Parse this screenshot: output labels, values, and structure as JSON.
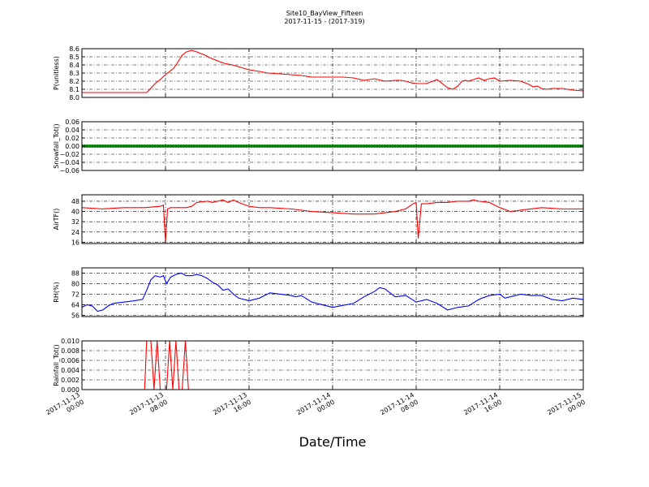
{
  "figure": {
    "title": "Site10_BayView_Fifteen",
    "subtitle": "2017-11-15 - (2017-319)",
    "xlabel": "Date/Time",
    "x_ticks": [
      {
        "line1": "2017-11-13",
        "line2": "00:00"
      },
      {
        "line1": "2017-11-13",
        "line2": "08:00"
      },
      {
        "line1": "2017-11-13",
        "line2": "16:00"
      },
      {
        "line1": "2017-11-14",
        "line2": "00:00"
      },
      {
        "line1": "2017-11-14",
        "line2": "08:00"
      },
      {
        "line1": "2017-11-14",
        "line2": "16:00"
      },
      {
        "line1": "2017-11-15",
        "line2": "00:00"
      }
    ]
  },
  "chart_data": [
    {
      "type": "line",
      "ylabel": "P(unitless)",
      "ylim": [
        8.0,
        8.6
      ],
      "yticks": [
        "8.0",
        "8.1",
        "8.2",
        "8.3",
        "8.4",
        "8.5",
        "8.6"
      ],
      "grid": true,
      "color": "#ff0000",
      "xunit": "hours since 2017-11-13 00:00",
      "x": [
        0,
        6.2,
        6.5,
        7.0,
        7.5,
        8.0,
        8.3,
        8.8,
        9.2,
        9.6,
        10.0,
        10.5,
        11.0,
        11.8,
        12.2,
        13.0,
        13.6,
        14.4,
        15.2,
        16.0,
        17.0,
        17.8,
        19.0,
        20.0,
        21.0,
        22.0,
        23.0,
        24.0,
        25.0,
        26.0,
        27.0,
        28.0,
        29.0,
        30.0,
        30.5,
        31.0,
        31.5,
        32.0,
        33.0,
        34.0,
        35.0,
        35.5,
        36.0,
        36.4,
        36.7,
        37.0,
        37.5,
        38.0,
        38.5,
        39.0,
        39.5,
        40.0,
        41.0,
        42.0,
        42.4,
        42.8,
        43.2,
        43.6,
        44.0,
        44.5,
        45.0,
        46.0,
        47.0,
        48.0
      ],
      "y": [
        8.06,
        8.06,
        8.1,
        8.17,
        8.22,
        8.28,
        8.31,
        8.36,
        8.44,
        8.52,
        8.56,
        8.58,
        8.56,
        8.52,
        8.49,
        8.45,
        8.42,
        8.4,
        8.37,
        8.34,
        8.32,
        8.3,
        8.29,
        8.28,
        8.27,
        8.25,
        8.25,
        8.25,
        8.25,
        8.24,
        8.21,
        8.23,
        8.2,
        8.21,
        8.21,
        8.2,
        8.18,
        8.17,
        8.17,
        8.22,
        8.12,
        8.1,
        8.14,
        8.2,
        8.21,
        8.2,
        8.22,
        8.24,
        8.21,
        8.23,
        8.24,
        8.2,
        8.21,
        8.2,
        8.18,
        8.16,
        8.13,
        8.14,
        8.11,
        8.1,
        8.11,
        8.11,
        8.09,
        8.08
      ]
    },
    {
      "type": "line",
      "ylabel": "Snowfall_Tot()",
      "ylim": [
        -0.06,
        0.06
      ],
      "yticks": [
        "−0.06",
        "−0.04",
        "−0.02",
        "0.00",
        "0.02",
        "0.04",
        "0.06"
      ],
      "grid": true,
      "color": "#008000",
      "marker": "dot",
      "xunit": "hours since 2017-11-13 00:00",
      "x": [
        0,
        48
      ],
      "y": [
        0.0,
        0.0
      ]
    },
    {
      "type": "line",
      "ylabel": "AirTF()",
      "ylim": [
        15,
        53
      ],
      "yticks": [
        "16",
        "24",
        "32",
        "40",
        "48"
      ],
      "grid": true,
      "color": "#ff0000",
      "xunit": "hours since 2017-11-13 00:00",
      "x": [
        0,
        2,
        4,
        6,
        7.5,
        7.8,
        8.0,
        8.2,
        8.5,
        9.0,
        10.0,
        10.5,
        11.0,
        12.0,
        12.5,
        13.0,
        13.5,
        14.0,
        14.5,
        15.0,
        16.0,
        17.0,
        18.0,
        20.0,
        22.0,
        24.0,
        26.0,
        28.0,
        30.0,
        31.0,
        31.7,
        32.0,
        32.2,
        32.5,
        33.0,
        34.0,
        35.0,
        36.0,
        37.0,
        37.5,
        38.0,
        39.0,
        40.0,
        41.0,
        42.0,
        44.0,
        46.0,
        48.0
      ],
      "y": [
        43,
        42,
        43,
        43,
        44,
        45,
        16,
        42,
        43,
        43,
        43,
        44,
        47,
        48,
        47,
        48,
        49,
        47,
        49,
        47,
        44,
        43,
        43,
        42,
        40,
        39,
        38,
        38,
        40,
        42,
        46,
        47,
        19,
        46,
        46,
        47,
        47,
        48,
        48,
        49,
        48,
        47,
        43,
        40,
        41,
        43,
        42,
        42
      ]
    },
    {
      "type": "line",
      "ylabel": "RH(%)",
      "ylim": [
        55,
        92
      ],
      "yticks": [
        "56",
        "64",
        "72",
        "80",
        "88"
      ],
      "grid": true,
      "color": "#0000ff",
      "xunit": "hours since 2017-11-13 00:00",
      "x": [
        0,
        0.5,
        1.0,
        1.5,
        2.0,
        2.5,
        3.0,
        4.0,
        5.0,
        5.8,
        6.2,
        6.6,
        7.0,
        7.5,
        7.8,
        8.1,
        8.5,
        9.0,
        9.5,
        10.0,
        10.5,
        11.0,
        11.5,
        12.0,
        12.5,
        13.0,
        13.5,
        14.0,
        14.5,
        15.0,
        16.0,
        17.0,
        17.5,
        18.0,
        19.0,
        20.0,
        20.5,
        21.0,
        22.0,
        23.0,
        24.0,
        26.0,
        27.0,
        28.0,
        28.5,
        29.0,
        29.5,
        30.0,
        31.0,
        32.0,
        33.0,
        34.0,
        35.0,
        36.0,
        37.0,
        38.0,
        39.0,
        40.0,
        40.5,
        41.0,
        42.0,
        43.0,
        44.0,
        45.0,
        46.0,
        47.0,
        48.0
      ],
      "y": [
        62,
        64,
        63,
        59,
        60,
        63,
        65,
        66,
        67,
        68,
        75,
        83,
        86,
        85,
        86,
        80,
        85,
        87,
        88,
        86,
        86,
        87,
        86,
        84,
        81,
        79,
        75,
        76,
        72,
        69,
        67,
        69,
        71,
        73,
        72,
        71,
        70,
        71,
        66,
        64,
        62,
        65,
        70,
        74,
        77,
        76,
        73,
        70,
        71,
        66,
        68,
        65,
        60,
        62,
        63,
        68,
        71,
        72,
        69,
        70,
        72,
        71,
        71,
        68,
        67,
        69,
        68
      ]
    },
    {
      "type": "line",
      "ylabel": "Rainfall_Tot()",
      "ylim": [
        0.0,
        0.01
      ],
      "yticks": [
        "0.000",
        "0.002",
        "0.004",
        "0.006",
        "0.008",
        "0.010"
      ],
      "grid": true,
      "color": "#ff0000",
      "xunit": "hours since 2017-11-13 00:00",
      "x": [
        0,
        6.0,
        6.2,
        6.6,
        6.9,
        7.2,
        7.5,
        7.8,
        8.1,
        8.4,
        8.7,
        9.0,
        9.3,
        9.6,
        9.9,
        10.2,
        48
      ],
      "y": [
        0.0,
        0.0,
        0.01,
        0.01,
        0.0,
        0.01,
        0.0,
        0.0,
        0.0,
        0.01,
        0.0,
        0.01,
        0.0,
        0.0,
        0.01,
        0.0,
        0.0
      ]
    }
  ]
}
